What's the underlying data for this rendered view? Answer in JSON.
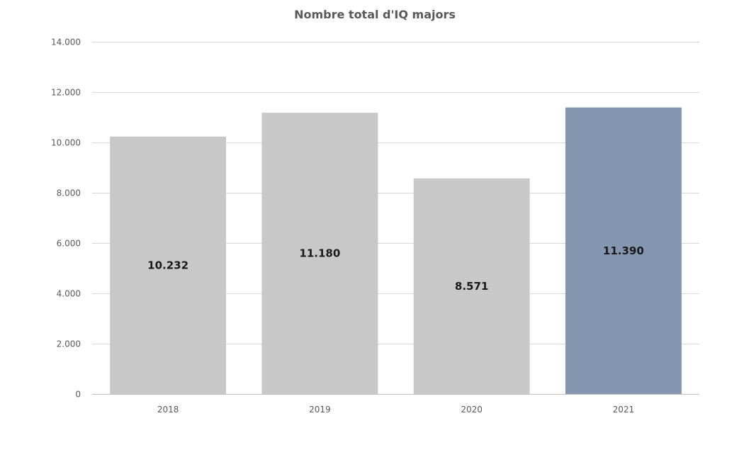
{
  "chart_data": {
    "type": "bar",
    "title": "Nombre total d'IQ majors",
    "categories": [
      "2018",
      "2019",
      "2020",
      "2021"
    ],
    "values": [
      10232,
      11180,
      8571,
      11390
    ],
    "data_labels": [
      "10.232",
      "11.180",
      "8.571",
      "11.390"
    ],
    "xlabel": "",
    "ylabel": "",
    "ylim": [
      0,
      14000
    ],
    "yticks": [
      0,
      2000,
      4000,
      6000,
      8000,
      10000,
      12000,
      14000
    ],
    "ytick_labels": [
      "0",
      "2.000",
      "4.000",
      "6.000",
      "8.000",
      "10.000",
      "12.000",
      "14.000"
    ],
    "grid": true,
    "legend": "none",
    "bar_colors": [
      "#c8c8c8",
      "#c8c8c8",
      "#c8c8c8",
      "#8496b0"
    ]
  }
}
